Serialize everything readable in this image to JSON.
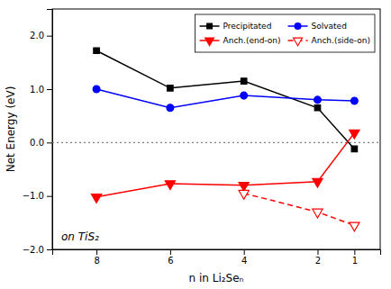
{
  "chart_data": {
    "type": "line",
    "xlabel": "n in Li₂Seₙ",
    "ylabel": "Net Energy (eV)",
    "annotation": "on TiS₂",
    "x": [
      8,
      6,
      4,
      2,
      1
    ],
    "series": [
      {
        "name": "Precipitated",
        "color": "black",
        "marker": "square",
        "line_style": "solid",
        "values": [
          1.72,
          1.02,
          1.15,
          0.65,
          -0.12
        ]
      },
      {
        "name": "Solvated",
        "color": "blue",
        "marker": "circle",
        "line_style": "solid",
        "values": [
          1.0,
          0.65,
          0.88,
          0.8,
          0.78
        ]
      },
      {
        "name": "Anch.(end-on)",
        "color": "red",
        "marker": "triangle-down",
        "line_style": "solid",
        "values": [
          -1.02,
          -0.77,
          -0.8,
          -0.73,
          0.18
        ]
      },
      {
        "name": "Anch.(side-on)",
        "color": "red",
        "marker": "triangle-down-open",
        "line_style": "dashed",
        "values": [
          null,
          null,
          -0.95,
          -1.3,
          -1.55
        ]
      }
    ],
    "hline_y": 0.0,
    "xlim": [
      9.2,
      0.3
    ],
    "ylim": [
      -2.0,
      2.5
    ],
    "xticks": [
      8,
      6,
      4,
      2,
      1
    ],
    "yticks": [
      {
        "value": -2.0,
        "label": "−2.0"
      },
      {
        "value": -1.0,
        "label": "−1.0"
      },
      {
        "value": 0.0,
        "label": "0.0"
      },
      {
        "value": 1.0,
        "label": "1.0"
      },
      {
        "value": 2.0,
        "label": "2.0"
      }
    ],
    "legend": "upper right"
  }
}
